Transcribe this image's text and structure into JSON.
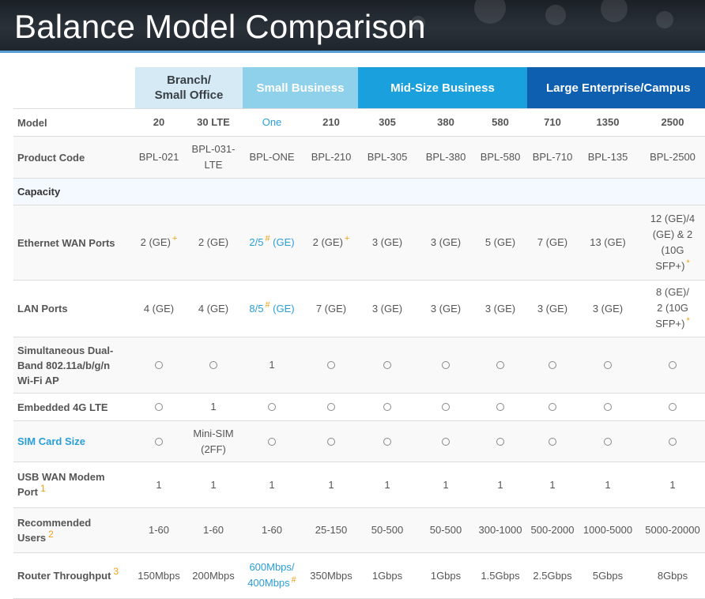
{
  "page": {
    "title": "Balance Model Comparison"
  },
  "tiers": [
    {
      "name": "Branch/\nSmall Office",
      "line1": "Branch/",
      "line2": "Small Office"
    },
    {
      "name": "Small Business"
    },
    {
      "name": "Mid-Size Business"
    },
    {
      "name": "Large Enterprise/Campus"
    }
  ],
  "table": {
    "model_label": "Model",
    "models": [
      "20",
      "30 LTE",
      "One",
      "210",
      "305",
      "380",
      "580",
      "710",
      "1350",
      "2500"
    ],
    "rows": {
      "product_code": {
        "label": "Product Code",
        "values": [
          "BPL-021",
          "BPL-031-\nLTE",
          "BPL-ONE",
          "BPL-210",
          "BPL-305",
          "BPL-380",
          "BPL-580",
          "BPL-710",
          "BPL-135",
          "BPL-2500"
        ]
      },
      "capacity": {
        "label": "Capacity"
      },
      "ethernet_wan": {
        "label": "Ethernet WAN Ports",
        "values": [
          "2 (GE)",
          "2 (GE)",
          "2/5",
          "2 (GE)",
          "3 (GE)",
          "3 (GE)",
          "5 (GE)",
          "7 (GE)",
          "13 (GE)",
          "12 (GE)/4\n(GE) & 2\n(10G\nSFP+)"
        ],
        "one_suffix": "(GE)",
        "marks": {
          "plus": "+",
          "hash": "#",
          "star": "*"
        }
      },
      "lan_ports": {
        "label": "LAN Ports",
        "values": [
          "4 (GE)",
          "4 (GE)",
          "8/5",
          "7 (GE)",
          "3 (GE)",
          "3 (GE)",
          "3 (GE)",
          "3 (GE)",
          "3 (GE)",
          "8 (GE)/\n2 (10G\nSFP+)"
        ],
        "one_suffix": "(GE)"
      },
      "wifi": {
        "label": "Simultaneous Dual-Band 802.11a/b/g/n Wi-Fi AP",
        "label_lines": [
          "Simultaneous Dual-",
          "Band 802.11a/b/g/n",
          "Wi-Fi AP"
        ],
        "values": [
          "○",
          "○",
          "1",
          "○",
          "○",
          "○",
          "○",
          "○",
          "○",
          "○"
        ]
      },
      "lte": {
        "label": "Embedded 4G LTE",
        "values": [
          "○",
          "1",
          "○",
          "○",
          "○",
          "○",
          "○",
          "○",
          "○",
          "○"
        ]
      },
      "sim": {
        "label": "SIM Card Size",
        "values": [
          "○",
          "Mini-SIM\n(2FF)",
          "○",
          "○",
          "○",
          "○",
          "○",
          "○",
          "○",
          "○"
        ]
      },
      "usb_wan": {
        "label_lines": [
          "USB WAN Modem",
          "Port"
        ],
        "footnote": "1",
        "values": [
          "1",
          "1",
          "1",
          "1",
          "1",
          "1",
          "1",
          "1",
          "1",
          "1"
        ]
      },
      "users": {
        "label_lines": [
          "Recommended",
          "Users"
        ],
        "footnote": "2",
        "values": [
          "1-60",
          "1-60",
          "1-60",
          "25-150",
          "50-500",
          "50-500",
          "300-1000",
          "500-2000",
          "1000-5000",
          "5000-20000"
        ]
      },
      "throughput": {
        "label": "Router Throughput",
        "footnote": "3",
        "values": [
          "150Mbps",
          "200Mbps",
          "600Mbps/\n400Mbps",
          "350Mbps",
          "1Gbps",
          "1Gbps",
          "1.5Gbps",
          "2.5Gbps",
          "5Gbps",
          "8Gbps"
        ]
      }
    }
  },
  "colors": {
    "accent_blue": "#2a9ed8",
    "footnote_orange": "#f0a018",
    "tier_branch": "#d5eaf5",
    "tier_small": "#8fd0ea",
    "tier_mid": "#1aa0dc",
    "tier_large": "#0f5fb0"
  },
  "icons": {
    "not_available": "circle-outline-icon"
  }
}
